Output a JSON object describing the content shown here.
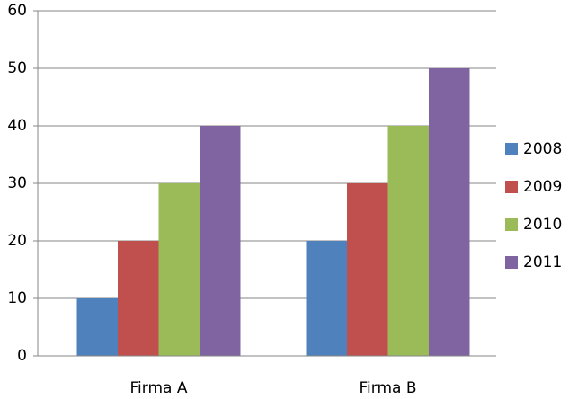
{
  "chart_data": {
    "type": "bar",
    "categories": [
      "Firma A",
      "Firma B"
    ],
    "series": [
      {
        "name": "2008",
        "color": "#4f81bd",
        "values": [
          10,
          20
        ]
      },
      {
        "name": "2009",
        "color": "#c0504d",
        "values": [
          20,
          30
        ]
      },
      {
        "name": "2010",
        "color": "#9bbb59",
        "values": [
          30,
          40
        ]
      },
      {
        "name": "2011",
        "color": "#8064a2",
        "values": [
          40,
          50
        ]
      }
    ],
    "ylim": [
      0,
      60
    ],
    "yticks": [
      0,
      10,
      20,
      30,
      40,
      50,
      60
    ],
    "grid": true,
    "legend": "right"
  }
}
